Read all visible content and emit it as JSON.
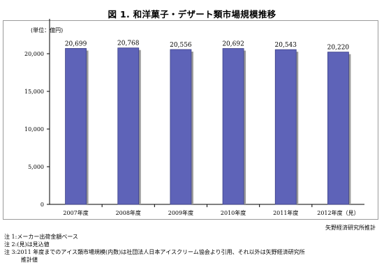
{
  "title": "図 1. 和洋菓子・デザート類市場規模推移",
  "unit_label": "(単位：億円)",
  "source": "矢野経済研究所推計",
  "notes": [
    "注 1:メーカー出荷金額ベース",
    "注 2:(見)は見込値",
    "注 3:2011 年度までのアイス類市場規模(内数)は社団法人日本アイスクリーム協会より引用、それ以外は矢野経済研究所",
    "推計値"
  ],
  "colors": {
    "bar_fill": "#5e63b8",
    "bar_edge": "#3a3e86",
    "bar_shadow": "#9a9a9a",
    "axis": "#000000",
    "frame": "#9a9a9a"
  },
  "chart_data": {
    "type": "bar",
    "categories": [
      "2007年度",
      "2008年度",
      "2009年度",
      "2010年度",
      "2011年度",
      "2012年度（見）"
    ],
    "values": [
      20699,
      20768,
      20556,
      20692,
      20543,
      20220
    ],
    "data_labels": [
      "20,699",
      "20,768",
      "20,556",
      "20,692",
      "20,543",
      "20,220"
    ],
    "y_ticks": [
      0,
      5000,
      10000,
      15000,
      20000
    ],
    "y_tick_labels": [
      "0",
      "5,000",
      "10,000",
      "15,000",
      "20,000"
    ],
    "ylim": [
      0,
      25000
    ],
    "grid": false,
    "legend": "none"
  }
}
